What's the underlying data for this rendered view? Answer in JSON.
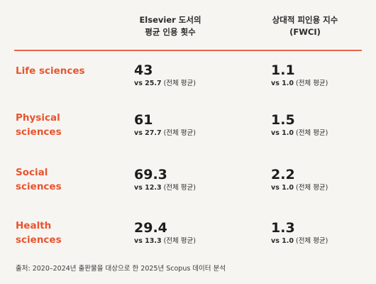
{
  "header": {
    "col1_line1": "Elsevier 도서의",
    "col1_line2": "평균 인용 횟수",
    "col2_line1": "상대적 피인용 지수",
    "col2_line2": "(FWCI)"
  },
  "rows": [
    {
      "label_line1": "Life sciences",
      "label_line2": "",
      "citations": "43",
      "citations_avg": "vs 25.7",
      "fwci": "1.1",
      "fwci_avg": "vs 1.0",
      "avg_note": "(전체 평균)"
    },
    {
      "label_line1": "Physical",
      "label_line2": "sciences",
      "citations": "61",
      "citations_avg": "vs 27.7",
      "fwci": "1.5",
      "fwci_avg": "vs 1.0",
      "avg_note": "(전체 평균)"
    },
    {
      "label_line1": "Social",
      "label_line2": "sciences",
      "citations": "69.3",
      "citations_avg": "vs 12.3",
      "fwci": "2.2",
      "fwci_avg": "vs 1.0",
      "avg_note": "(전체 평균)"
    },
    {
      "label_line1": "Health",
      "label_line2": "sciences",
      "citations": "29.4",
      "citations_avg": "vs 13.3",
      "fwci": "1.3",
      "fwci_avg": "vs 1.0",
      "avg_note": "(전체 평균)"
    }
  ],
  "footer": {
    "source": "출처: 2020–2024년 출판물을 대상으로 한 2025년 Scopus 데이터 분석"
  },
  "colors": {
    "accent": "#e8542f",
    "rule": "#e8644a",
    "background": "#f7f5f1",
    "text": "#1c1c1c"
  }
}
